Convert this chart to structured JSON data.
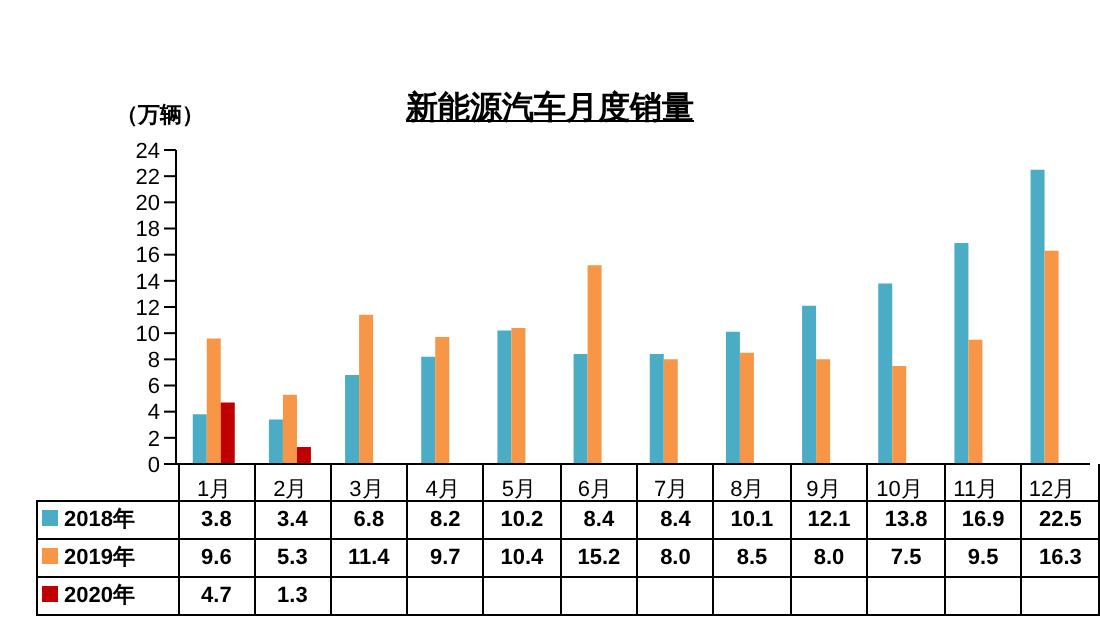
{
  "chart_data": {
    "type": "bar",
    "title": "新能源汽车月度销量",
    "ylabel": "（万辆）",
    "categories": [
      "1月",
      "2月",
      "3月",
      "4月",
      "5月",
      "6月",
      "7月",
      "8月",
      "9月",
      "10月",
      "11月",
      "12月"
    ],
    "series": [
      {
        "name": "2018年",
        "color": "#4bacc6",
        "values": [
          3.8,
          3.4,
          6.8,
          8.2,
          10.2,
          8.4,
          8.4,
          10.1,
          12.1,
          13.8,
          16.9,
          22.5
        ],
        "value_labels": [
          "3.8",
          "3.4",
          "6.8",
          "8.2",
          "10.2",
          "8.4",
          "8.4",
          "10.1",
          "12.1",
          "13.8",
          "16.9",
          "22.5"
        ]
      },
      {
        "name": "2019年",
        "color": "#f79646",
        "values": [
          9.6,
          5.3,
          11.4,
          9.7,
          10.4,
          15.2,
          8.0,
          8.5,
          8.0,
          7.5,
          9.5,
          16.3
        ],
        "value_labels": [
          "9.6",
          "5.3",
          "11.4",
          "9.7",
          "10.4",
          "15.2",
          "8.0",
          "8.5",
          "8.0",
          "7.5",
          "9.5",
          "16.3"
        ]
      },
      {
        "name": "2020年",
        "color": "#c00000",
        "values": [
          4.7,
          1.3,
          null,
          null,
          null,
          null,
          null,
          null,
          null,
          null,
          null,
          null
        ],
        "value_labels": [
          "4.7",
          "1.3",
          null,
          null,
          null,
          null,
          null,
          null,
          null,
          null,
          null,
          null
        ]
      }
    ],
    "ylim": [
      0,
      24
    ],
    "yticks": [
      0,
      2,
      4,
      6,
      8,
      10,
      12,
      14,
      16,
      18,
      20,
      22,
      24
    ],
    "grid": false,
    "legend": "bottom"
  }
}
